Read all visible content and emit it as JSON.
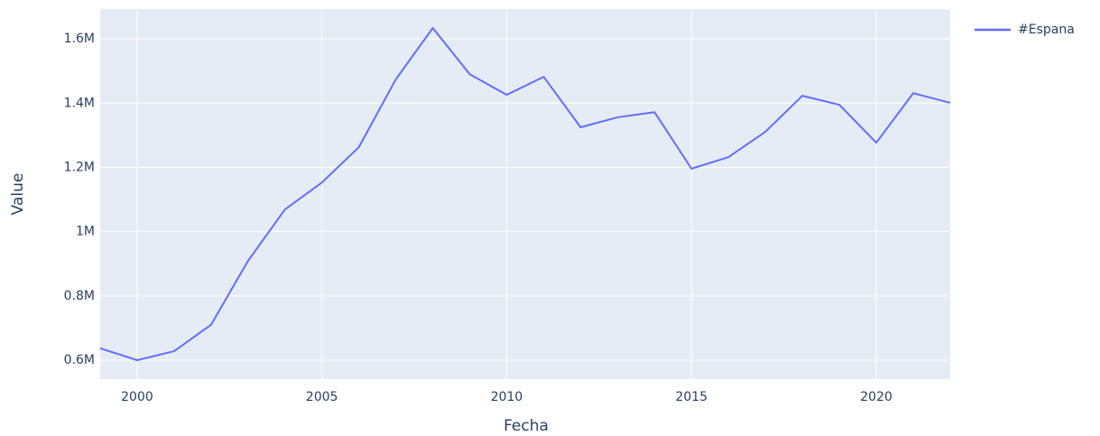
{
  "chart_data": {
    "type": "line",
    "x": [
      1999,
      2000,
      2001,
      2002,
      2003,
      2004,
      2005,
      2006,
      2007,
      2008,
      2009,
      2010,
      2011,
      2012,
      2013,
      2014,
      2015,
      2016,
      2017,
      2018,
      2019,
      2020,
      2021,
      2022
    ],
    "series": [
      {
        "name": "#Espana",
        "color": "#636efa",
        "values": [
          637000,
          600000,
          628000,
          710000,
          909000,
          1069000,
          1153000,
          1263000,
          1474000,
          1634000,
          1490000,
          1426000,
          1482000,
          1325000,
          1356000,
          1372000,
          1196000,
          1232000,
          1311000,
          1423000,
          1395000,
          1277000,
          1431000,
          1401000
        ]
      }
    ],
    "xlabel": "Fecha",
    "ylabel": "Value",
    "xlim": [
      1999,
      2022
    ],
    "xticks": [
      2000,
      2005,
      2010,
      2015,
      2020
    ],
    "ylim": [
      541000,
      1693000
    ],
    "yticks": [
      {
        "value": 600000,
        "label": "0.6M"
      },
      {
        "value": 800000,
        "label": "0.8M"
      },
      {
        "value": 1000000,
        "label": "1M"
      },
      {
        "value": 1200000,
        "label": "1.2M"
      },
      {
        "value": 1400000,
        "label": "1.4M"
      },
      {
        "value": 1600000,
        "label": "1.6M"
      }
    ],
    "grid": true,
    "legend": "right"
  }
}
